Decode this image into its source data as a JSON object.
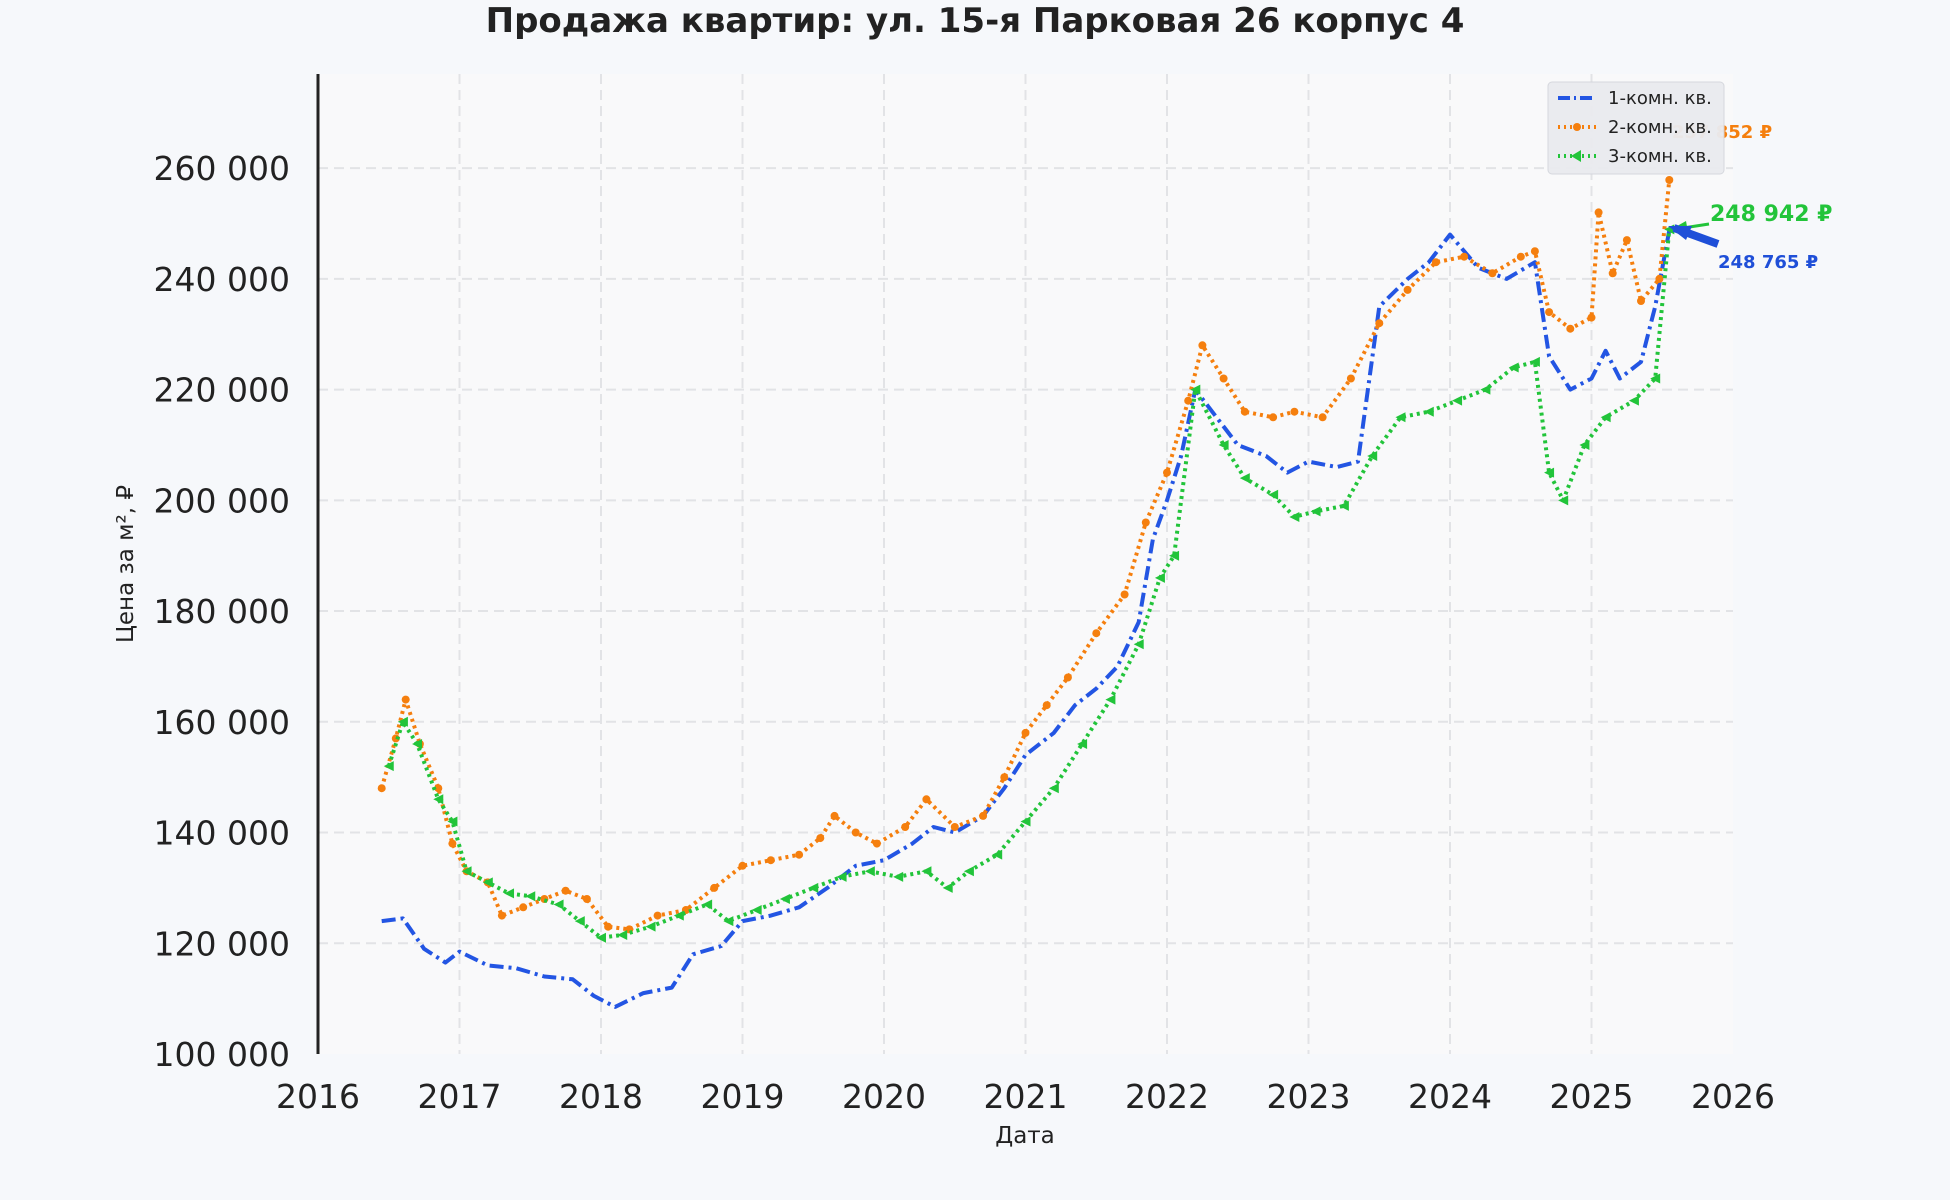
{
  "chart_data": {
    "type": "line",
    "title": "Продажа квартир: ул. 15-я Парковая 26 корпус 4",
    "xlabel": "Дата",
    "ylabel": "Цена за м², ₽",
    "xlim": [
      2016.0,
      2026.0
    ],
    "ylim": [
      100000,
      277000
    ],
    "x_ticks": [
      "2016",
      "2017",
      "2018",
      "2019",
      "2020",
      "2021",
      "2022",
      "2023",
      "2024",
      "2025",
      "2026"
    ],
    "y_ticks": [
      "100 000",
      "120 000",
      "140 000",
      "160 000",
      "180 000",
      "200 000",
      "220 000",
      "240 000",
      "260 000"
    ],
    "grid": true,
    "legend_position": "top-right",
    "series": [
      {
        "name": "1-комн. кв.",
        "color": "#2355e3",
        "style": "dashdot",
        "points": [
          [
            2016.45,
            124000
          ],
          [
            2016.6,
            124500
          ],
          [
            2016.75,
            119000
          ],
          [
            2016.9,
            116500
          ],
          [
            2017.0,
            118500
          ],
          [
            2017.2,
            116000
          ],
          [
            2017.4,
            115500
          ],
          [
            2017.6,
            114000
          ],
          [
            2017.8,
            113500
          ],
          [
            2017.95,
            110500
          ],
          [
            2018.1,
            108500
          ],
          [
            2018.3,
            111000
          ],
          [
            2018.5,
            112000
          ],
          [
            2018.65,
            118000
          ],
          [
            2018.85,
            119500
          ],
          [
            2019.0,
            124000
          ],
          [
            2019.2,
            125000
          ],
          [
            2019.4,
            126500
          ],
          [
            2019.6,
            130000
          ],
          [
            2019.8,
            134000
          ],
          [
            2020.0,
            135000
          ],
          [
            2020.2,
            138000
          ],
          [
            2020.35,
            141000
          ],
          [
            2020.5,
            140000
          ],
          [
            2020.7,
            143000
          ],
          [
            2020.85,
            148000
          ],
          [
            2021.0,
            154000
          ],
          [
            2021.2,
            158000
          ],
          [
            2021.35,
            163000
          ],
          [
            2021.5,
            166000
          ],
          [
            2021.65,
            170000
          ],
          [
            2021.8,
            178000
          ],
          [
            2021.9,
            193000
          ],
          [
            2022.0,
            200000
          ],
          [
            2022.1,
            208000
          ],
          [
            2022.2,
            220000
          ],
          [
            2022.35,
            215000
          ],
          [
            2022.5,
            210000
          ],
          [
            2022.7,
            208000
          ],
          [
            2022.85,
            205000
          ],
          [
            2023.0,
            207000
          ],
          [
            2023.2,
            206000
          ],
          [
            2023.35,
            207000
          ],
          [
            2023.5,
            235000
          ],
          [
            2023.7,
            240000
          ],
          [
            2023.85,
            243000
          ],
          [
            2024.0,
            248000
          ],
          [
            2024.2,
            242000
          ],
          [
            2024.4,
            240000
          ],
          [
            2024.6,
            243000
          ],
          [
            2024.7,
            226000
          ],
          [
            2024.85,
            220000
          ],
          [
            2025.0,
            222000
          ],
          [
            2025.1,
            227000
          ],
          [
            2025.2,
            222000
          ],
          [
            2025.35,
            225000
          ],
          [
            2025.45,
            235000
          ],
          [
            2025.55,
            248765
          ]
        ]
      },
      {
        "name": "2-комн. кв.",
        "color": "#f57f0e",
        "style": "dotted",
        "points": [
          [
            2016.45,
            148000
          ],
          [
            2016.55,
            157000
          ],
          [
            2016.62,
            164000
          ],
          [
            2016.72,
            156000
          ],
          [
            2016.85,
            148000
          ],
          [
            2016.95,
            138000
          ],
          [
            2017.05,
            133000
          ],
          [
            2017.2,
            131000
          ],
          [
            2017.3,
            125000
          ],
          [
            2017.45,
            126500
          ],
          [
            2017.6,
            128000
          ],
          [
            2017.75,
            129500
          ],
          [
            2017.9,
            128000
          ],
          [
            2018.05,
            123000
          ],
          [
            2018.2,
            122500
          ],
          [
            2018.4,
            125000
          ],
          [
            2018.6,
            126000
          ],
          [
            2018.8,
            130000
          ],
          [
            2019.0,
            134000
          ],
          [
            2019.2,
            135000
          ],
          [
            2019.4,
            136000
          ],
          [
            2019.55,
            139000
          ],
          [
            2019.65,
            143000
          ],
          [
            2019.8,
            140000
          ],
          [
            2019.95,
            138000
          ],
          [
            2020.15,
            141000
          ],
          [
            2020.3,
            146000
          ],
          [
            2020.5,
            141000
          ],
          [
            2020.7,
            143000
          ],
          [
            2020.85,
            150000
          ],
          [
            2021.0,
            158000
          ],
          [
            2021.15,
            163000
          ],
          [
            2021.3,
            168000
          ],
          [
            2021.5,
            176000
          ],
          [
            2021.7,
            183000
          ],
          [
            2021.85,
            196000
          ],
          [
            2022.0,
            205000
          ],
          [
            2022.15,
            218000
          ],
          [
            2022.25,
            228000
          ],
          [
            2022.4,
            222000
          ],
          [
            2022.55,
            216000
          ],
          [
            2022.75,
            215000
          ],
          [
            2022.9,
            216000
          ],
          [
            2023.1,
            215000
          ],
          [
            2023.3,
            222000
          ],
          [
            2023.5,
            232000
          ],
          [
            2023.7,
            238000
          ],
          [
            2023.9,
            243000
          ],
          [
            2024.1,
            244000
          ],
          [
            2024.3,
            241000
          ],
          [
            2024.5,
            244000
          ],
          [
            2024.6,
            245000
          ],
          [
            2024.7,
            234000
          ],
          [
            2024.85,
            231000
          ],
          [
            2025.0,
            233000
          ],
          [
            2025.05,
            252000
          ],
          [
            2025.15,
            241000
          ],
          [
            2025.25,
            247000
          ],
          [
            2025.35,
            236000
          ],
          [
            2025.48,
            240000
          ],
          [
            2025.55,
            257852
          ]
        ]
      },
      {
        "name": "3-комн. кв.",
        "color": "#22c43a",
        "style": "dotted-markers",
        "points": [
          [
            2016.5,
            152000
          ],
          [
            2016.6,
            160000
          ],
          [
            2016.7,
            156000
          ],
          [
            2016.85,
            146000
          ],
          [
            2016.95,
            142000
          ],
          [
            2017.05,
            133000
          ],
          [
            2017.2,
            131000
          ],
          [
            2017.35,
            129000
          ],
          [
            2017.5,
            128500
          ],
          [
            2017.7,
            127000
          ],
          [
            2017.85,
            124000
          ],
          [
            2018.0,
            121000
          ],
          [
            2018.15,
            121500
          ],
          [
            2018.35,
            123000
          ],
          [
            2018.55,
            125000
          ],
          [
            2018.75,
            127000
          ],
          [
            2018.9,
            124000
          ],
          [
            2019.1,
            126000
          ],
          [
            2019.3,
            128000
          ],
          [
            2019.5,
            130000
          ],
          [
            2019.7,
            132000
          ],
          [
            2019.9,
            133000
          ],
          [
            2020.1,
            132000
          ],
          [
            2020.3,
            133000
          ],
          [
            2020.45,
            130000
          ],
          [
            2020.6,
            133000
          ],
          [
            2020.8,
            136000
          ],
          [
            2021.0,
            142000
          ],
          [
            2021.2,
            148000
          ],
          [
            2021.4,
            156000
          ],
          [
            2021.6,
            164000
          ],
          [
            2021.8,
            174000
          ],
          [
            2021.95,
            186000
          ],
          [
            2022.05,
            190000
          ],
          [
            2022.2,
            220000
          ],
          [
            2022.4,
            210000
          ],
          [
            2022.55,
            204000
          ],
          [
            2022.75,
            201000
          ],
          [
            2022.9,
            197000
          ],
          [
            2023.05,
            198000
          ],
          [
            2023.25,
            199000
          ],
          [
            2023.45,
            208000
          ],
          [
            2023.65,
            215000
          ],
          [
            2023.85,
            216000
          ],
          [
            2024.05,
            218000
          ],
          [
            2024.25,
            220000
          ],
          [
            2024.45,
            224000
          ],
          [
            2024.6,
            225000
          ],
          [
            2024.7,
            205000
          ],
          [
            2024.8,
            200000
          ],
          [
            2024.95,
            210000
          ],
          [
            2025.1,
            215000
          ],
          [
            2025.3,
            218000
          ],
          [
            2025.45,
            222000
          ],
          [
            2025.55,
            248942
          ]
        ]
      }
    ],
    "annotations": [
      {
        "text": "248 942 ₽",
        "series": "3-комн. кв.",
        "color": "#22c43a"
      },
      {
        "text": "248 765 ₽",
        "series": "1-комн. кв.",
        "color": "#1f4fd8"
      },
      {
        "text": "257 852 ₽",
        "series": "2-комн. кв.",
        "color": "#f57f0e"
      }
    ]
  }
}
